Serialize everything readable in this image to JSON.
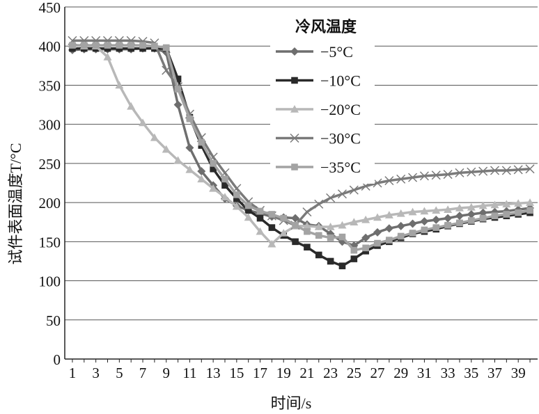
{
  "chart_data": {
    "type": "line",
    "title": "",
    "xlabel": "时间/s",
    "ylabel": "试件表面温度T/°C",
    "ylim": [
      0,
      450
    ],
    "yticks": [
      0,
      50,
      100,
      150,
      200,
      250,
      300,
      350,
      400,
      450
    ],
    "xlim": [
      1,
      40
    ],
    "xticks": [
      1,
      3,
      5,
      7,
      9,
      11,
      13,
      15,
      17,
      19,
      21,
      23,
      25,
      27,
      29,
      31,
      33,
      35,
      37,
      39
    ],
    "grid": "horizontal",
    "legend": {
      "title": "冷风温度",
      "placement": "top-center"
    },
    "x": [
      1,
      2,
      3,
      4,
      5,
      6,
      7,
      8,
      9,
      10,
      11,
      12,
      13,
      14,
      15,
      16,
      17,
      18,
      19,
      20,
      21,
      22,
      23,
      24,
      25,
      26,
      27,
      28,
      29,
      30,
      31,
      32,
      33,
      34,
      35,
      36,
      37,
      38,
      39,
      40
    ],
    "series": [
      {
        "name": "−5°C",
        "color": "#6e6e6e",
        "marker": "diamond",
        "values": [
          395,
          396,
          396,
          396,
          396,
          396,
          397,
          397,
          392,
          325,
          270,
          240,
          222,
          205,
          196,
          190,
          186,
          182,
          181,
          180,
          172,
          170,
          160,
          150,
          145,
          155,
          162,
          167,
          170,
          173,
          176,
          178,
          180,
          183,
          185,
          187,
          188,
          189,
          191,
          193
        ]
      },
      {
        "name": "−10°C",
        "color": "#2a2a2a",
        "marker": "square",
        "values": [
          397,
          397,
          397,
          397,
          397,
          397,
          397,
          397,
          397,
          358,
          309,
          273,
          243,
          222,
          205,
          190,
          180,
          168,
          158,
          150,
          143,
          133,
          125,
          119,
          128,
          138,
          145,
          150,
          155,
          160,
          163,
          166,
          170,
          173,
          176,
          179,
          181,
          183,
          185,
          187
        ]
      },
      {
        "name": "−20°C",
        "color": "#b8b8b8",
        "marker": "triangle",
        "values": [
          402,
          400,
          400,
          386,
          350,
          323,
          302,
          283,
          268,
          254,
          242,
          230,
          218,
          207,
          195,
          181,
          163,
          147,
          161,
          170,
          170,
          169,
          169,
          171,
          175,
          178,
          181,
          184,
          186,
          188,
          189,
          190,
          191,
          193,
          194,
          196,
          197,
          198,
          199,
          200
        ]
      },
      {
        "name": "−30°C",
        "color": "#7a7a7a",
        "marker": "cross",
        "values": [
          407,
          407,
          407,
          407,
          407,
          407,
          406,
          404,
          369,
          348,
          313,
          283,
          258,
          238,
          218,
          201,
          190,
          183,
          177,
          171,
          188,
          198,
          206,
          211,
          216,
          221,
          225,
          228,
          230,
          232,
          234,
          235,
          236,
          238,
          239,
          240,
          241,
          241,
          242,
          243
        ]
      },
      {
        "name": "−35°C",
        "color": "#a3a3a3",
        "marker": "square",
        "values": [
          401,
          401,
          401,
          401,
          401,
          401,
          401,
          400,
          398,
          345,
          307,
          277,
          250,
          230,
          210,
          196,
          189,
          185,
          180,
          171,
          163,
          158,
          155,
          156,
          139,
          142,
          148,
          152,
          157,
          161,
          165,
          168,
          171,
          174,
          177,
          180,
          183,
          185,
          187,
          190
        ]
      }
    ]
  }
}
